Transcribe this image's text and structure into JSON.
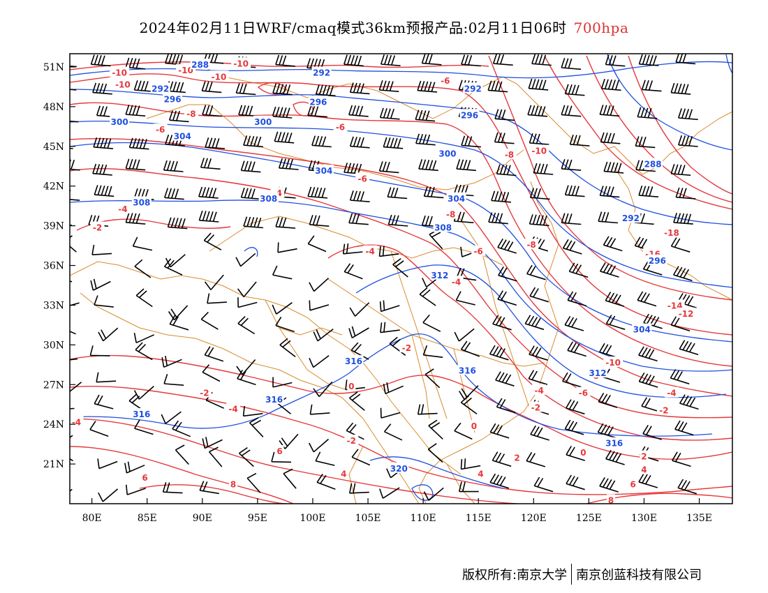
{
  "title": {
    "main": "2024年02月11日WRF/cmaq模式36km预报产品:02月11日06时",
    "level": "700hpa",
    "level_color": "#e03131"
  },
  "map": {
    "lon_range": [
      78,
      138
    ],
    "lat_range": [
      18,
      52
    ],
    "lat_ticks": [
      "21N",
      "24N",
      "27N",
      "30N",
      "33N",
      "36N",
      "39N",
      "42N",
      "45N",
      "48N",
      "51N"
    ],
    "lon_ticks": [
      "80E",
      "85E",
      "90E",
      "95E",
      "100E",
      "105E",
      "110E",
      "115E",
      "120E",
      "125E",
      "130E",
      "135E"
    ],
    "colors": {
      "temperature": "#e5383b",
      "geopotential": "#1f4fe0",
      "boundaries": "#d98a2b",
      "wind": "#000000"
    },
    "temperature_labels": [
      {
        "text": "-10",
        "lon": 82.5,
        "lat": 50.6
      },
      {
        "text": "-10",
        "lon": 88.5,
        "lat": 50.8
      },
      {
        "text": "-10",
        "lon": 93.5,
        "lat": 51.3
      },
      {
        "text": "-10",
        "lon": 82.8,
        "lat": 49.7
      },
      {
        "text": "-10",
        "lon": 91.5,
        "lat": 50.3
      },
      {
        "text": "-8",
        "lon": 89.0,
        "lat": 47.5
      },
      {
        "text": "-6",
        "lon": 86.2,
        "lat": 46.3
      },
      {
        "text": "-6",
        "lon": 102.5,
        "lat": 46.5
      },
      {
        "text": "-6",
        "lon": 112.0,
        "lat": 50.0
      },
      {
        "text": "-4",
        "lon": 82.8,
        "lat": 40.3
      },
      {
        "text": "-2",
        "lon": 80.5,
        "lat": 38.9
      },
      {
        "text": "-4",
        "lon": 96.8,
        "lat": 41.5
      },
      {
        "text": "-6",
        "lon": 104.5,
        "lat": 42.6
      },
      {
        "text": "-8",
        "lon": 117.8,
        "lat": 44.4
      },
      {
        "text": "-10",
        "lon": 120.5,
        "lat": 44.7
      },
      {
        "text": "-8",
        "lon": 112.5,
        "lat": 39.9
      },
      {
        "text": "-6",
        "lon": 115.0,
        "lat": 37.1
      },
      {
        "text": "-8",
        "lon": 119.8,
        "lat": 37.6
      },
      {
        "text": "-4",
        "lon": 105.2,
        "lat": 37.1
      },
      {
        "text": "-4",
        "lon": 113.0,
        "lat": 34.8
      },
      {
        "text": "-18",
        "lon": 132.5,
        "lat": 38.5
      },
      {
        "text": "-16",
        "lon": 130.8,
        "lat": 36.9
      },
      {
        "text": "-14",
        "lon": 132.8,
        "lat": 33.0
      },
      {
        "text": "-12",
        "lon": 133.8,
        "lat": 32.4
      },
      {
        "text": "-10",
        "lon": 127.2,
        "lat": 28.7
      },
      {
        "text": "-8",
        "lon": 125.5,
        "lat": 27.7
      },
      {
        "text": "-6",
        "lon": 124.5,
        "lat": 26.4
      },
      {
        "text": "-4",
        "lon": 120.5,
        "lat": 26.6
      },
      {
        "text": "-4",
        "lon": 132.5,
        "lat": 26.4
      },
      {
        "text": "-2",
        "lon": 108.5,
        "lat": 29.8
      },
      {
        "text": "-2",
        "lon": 120.2,
        "lat": 25.3
      },
      {
        "text": "-2",
        "lon": 131.8,
        "lat": 25.1
      },
      {
        "text": "-2",
        "lon": 103.5,
        "lat": 22.8
      },
      {
        "text": "2",
        "lon": 118.5,
        "lat": 21.5
      },
      {
        "text": "0",
        "lon": 114.6,
        "lat": 23.9
      },
      {
        "text": "0",
        "lon": 124.5,
        "lat": 21.9
      },
      {
        "text": "-4",
        "lon": 78.6,
        "lat": 24.2
      },
      {
        "text": "-2",
        "lon": 90.2,
        "lat": 26.4
      },
      {
        "text": "-4",
        "lon": 92.8,
        "lat": 25.2
      },
      {
        "text": "2",
        "lon": 130.0,
        "lat": 21.6
      },
      {
        "text": "4",
        "lon": 115.2,
        "lat": 20.3
      },
      {
        "text": "4",
        "lon": 102.8,
        "lat": 20.3
      },
      {
        "text": "4",
        "lon": 130.0,
        "lat": 20.6
      },
      {
        "text": "6",
        "lon": 97.0,
        "lat": 22.0
      },
      {
        "text": "6",
        "lon": 84.8,
        "lat": 20.0
      },
      {
        "text": "6",
        "lon": 129.0,
        "lat": 19.5
      },
      {
        "text": "8",
        "lon": 92.8,
        "lat": 19.5
      },
      {
        "text": "8",
        "lon": 127.0,
        "lat": 18.3
      },
      {
        "text": "0",
        "lon": 103.5,
        "lat": 26.9
      }
    ],
    "geopotential_labels": [
      {
        "text": "288",
        "lon": 89.8,
        "lat": 51.2
      },
      {
        "text": "292",
        "lon": 86.2,
        "lat": 49.4
      },
      {
        "text": "296",
        "lon": 87.3,
        "lat": 48.6
      },
      {
        "text": "292",
        "lon": 100.8,
        "lat": 50.6
      },
      {
        "text": "296",
        "lon": 100.5,
        "lat": 48.4
      },
      {
        "text": "292",
        "lon": 114.5,
        "lat": 49.4
      },
      {
        "text": "296",
        "lon": 114.2,
        "lat": 47.4
      },
      {
        "text": "300",
        "lon": 82.5,
        "lat": 46.9
      },
      {
        "text": "304",
        "lon": 88.2,
        "lat": 45.8
      },
      {
        "text": "300",
        "lon": 95.5,
        "lat": 46.9
      },
      {
        "text": "300",
        "lon": 112.2,
        "lat": 44.5
      },
      {
        "text": "304",
        "lon": 101.0,
        "lat": 43.2
      },
      {
        "text": "304",
        "lon": 113.0,
        "lat": 41.1
      },
      {
        "text": "308",
        "lon": 84.5,
        "lat": 40.8
      },
      {
        "text": "308",
        "lon": 96.0,
        "lat": 41.1
      },
      {
        "text": "308",
        "lon": 111.8,
        "lat": 38.9
      },
      {
        "text": "312",
        "lon": 111.5,
        "lat": 35.3
      },
      {
        "text": "288",
        "lon": 130.8,
        "lat": 43.7
      },
      {
        "text": "292",
        "lon": 128.8,
        "lat": 39.6
      },
      {
        "text": "296",
        "lon": 131.2,
        "lat": 36.4
      },
      {
        "text": "304",
        "lon": 129.8,
        "lat": 31.2
      },
      {
        "text": "312",
        "lon": 125.8,
        "lat": 27.9
      },
      {
        "text": "316",
        "lon": 103.7,
        "lat": 28.8
      },
      {
        "text": "316",
        "lon": 114.0,
        "lat": 28.1
      },
      {
        "text": "316",
        "lon": 96.5,
        "lat": 25.9
      },
      {
        "text": "316",
        "lon": 84.5,
        "lat": 24.8
      },
      {
        "text": "316",
        "lon": 127.3,
        "lat": 22.6
      },
      {
        "text": "320",
        "lon": 107.8,
        "lat": 20.7
      }
    ]
  },
  "footer": {
    "left": "版权所有:南京大学",
    "right": "南京创蓝科技有限公司"
  }
}
